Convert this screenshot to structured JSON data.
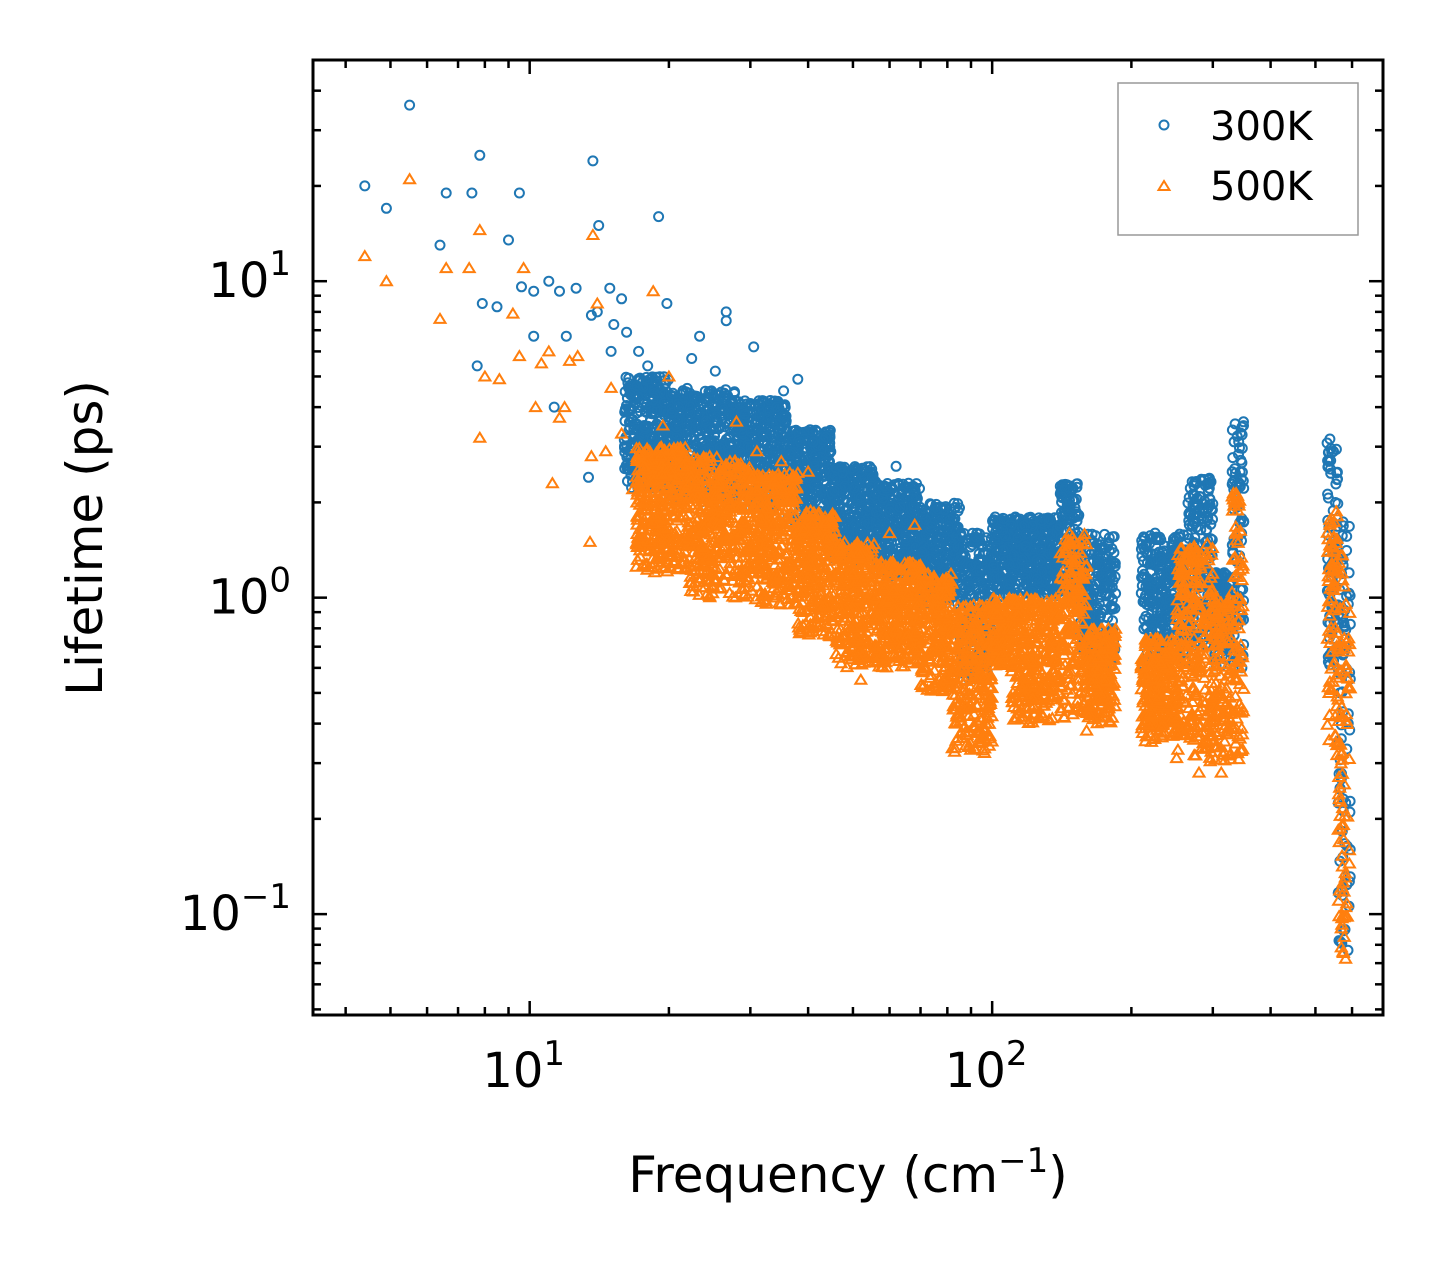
{
  "chart_data": {
    "type": "scatter",
    "title": "",
    "xlabel": "Frequency (cm",
    "xlabel_sup": "−1",
    "xlabel_end": ")",
    "ylabel": "Lifetime (ps)",
    "xscale": "log",
    "yscale": "log",
    "xlim": [
      3.4,
      700
    ],
    "ylim": [
      0.048,
      50
    ],
    "x_ticks": [
      {
        "value": 10,
        "base": "10",
        "exp": "1"
      },
      {
        "value": 100,
        "base": "10",
        "exp": "2"
      }
    ],
    "y_ticks": [
      {
        "value": 0.1,
        "base": "10",
        "exp": "−1"
      },
      {
        "value": 1,
        "base": "10",
        "exp": "0"
      },
      {
        "value": 10,
        "base": "10",
        "exp": "1"
      }
    ],
    "legend_position": "top-right",
    "series": [
      {
        "name": "300K",
        "color": "#1f77b4",
        "marker": "circle",
        "points": [
          [
            4.4,
            20.0
          ],
          [
            4.9,
            17.0
          ],
          [
            5.5,
            36.0
          ],
          [
            6.4,
            13.0
          ],
          [
            6.6,
            19.0
          ],
          [
            7.5,
            19.0
          ],
          [
            7.8,
            25.0
          ],
          [
            7.7,
            5.4
          ],
          [
            7.9,
            8.5
          ],
          [
            8.5,
            8.3
          ],
          [
            9.0,
            13.5
          ],
          [
            9.5,
            19.0
          ],
          [
            9.6,
            9.6
          ],
          [
            10.2,
            9.3
          ],
          [
            10.2,
            6.7
          ],
          [
            11.0,
            10.0
          ],
          [
            11.3,
            4.0
          ],
          [
            11.6,
            9.3
          ],
          [
            12.0,
            6.7
          ],
          [
            12.6,
            9.5
          ],
          [
            13.4,
            2.4
          ],
          [
            13.6,
            7.8
          ],
          [
            13.7,
            24.0
          ],
          [
            14.1,
            15.0
          ],
          [
            14.0,
            8.0
          ],
          [
            14.9,
            9.5
          ],
          [
            15.0,
            6.0
          ],
          [
            15.2,
            7.3
          ],
          [
            15.8,
            8.8
          ],
          [
            16.2,
            6.9
          ],
          [
            17.2,
            6.0
          ],
          [
            18.0,
            5.4
          ],
          [
            18.5,
            4.2
          ],
          [
            19.0,
            16.0
          ],
          [
            19.8,
            8.5
          ],
          [
            21.0,
            4.0
          ],
          [
            22.4,
            5.7
          ],
          [
            23.3,
            6.7
          ],
          [
            25.2,
            5.2
          ],
          [
            26.6,
            8.0
          ],
          [
            26.6,
            7.5
          ],
          [
            29.2,
            3.8
          ],
          [
            30.5,
            6.2
          ],
          [
            33.0,
            3.9
          ],
          [
            35.4,
            4.5
          ],
          [
            38.0,
            4.9
          ],
          [
            41.0,
            3.1
          ],
          [
            44.5,
            2.9
          ],
          [
            55.0,
            2.4
          ],
          [
            62.0,
            2.6
          ]
        ],
        "bands": [
          [
            16,
            20,
            2.2,
            5.0
          ],
          [
            20,
            28,
            2.0,
            4.6
          ],
          [
            28,
            36,
            1.9,
            4.2
          ],
          [
            36,
            45,
            1.6,
            3.4
          ],
          [
            45,
            56,
            1.3,
            2.6
          ],
          [
            56,
            70,
            1.15,
            2.3
          ],
          [
            70,
            85,
            0.95,
            2.0
          ],
          [
            85,
            100,
            0.55,
            1.6
          ],
          [
            100,
            140,
            1.0,
            1.8
          ],
          [
            140,
            155,
            1.0,
            2.3
          ],
          [
            155,
            185,
            0.6,
            1.6
          ],
          [
            210,
            265,
            0.6,
            1.6
          ],
          [
            265,
            300,
            0.7,
            2.4
          ],
          [
            300,
            330,
            0.6,
            1.2
          ],
          [
            330,
            350,
            0.6,
            3.6
          ],
          [
            530,
            560,
            0.6,
            3.2
          ],
          [
            560,
            595,
            0.07,
            1.8
          ]
        ]
      },
      {
        "name": "500K",
        "color": "#ff7f0e",
        "marker": "triangle",
        "points": [
          [
            4.4,
            12.0
          ],
          [
            4.9,
            10.0
          ],
          [
            5.5,
            21.0
          ],
          [
            6.4,
            7.6
          ],
          [
            6.6,
            11.0
          ],
          [
            7.4,
            11.0
          ],
          [
            7.8,
            3.2
          ],
          [
            7.8,
            14.5
          ],
          [
            8.0,
            5.0
          ],
          [
            8.6,
            4.9
          ],
          [
            9.2,
            7.9
          ],
          [
            9.5,
            5.8
          ],
          [
            9.7,
            11.0
          ],
          [
            10.3,
            4.0
          ],
          [
            10.6,
            5.5
          ],
          [
            11.0,
            6.0
          ],
          [
            11.2,
            2.3
          ],
          [
            11.6,
            3.7
          ],
          [
            11.9,
            4.0
          ],
          [
            12.2,
            5.6
          ],
          [
            12.7,
            5.8
          ],
          [
            13.5,
            1.5
          ],
          [
            13.6,
            2.8
          ],
          [
            13.7,
            14.0
          ],
          [
            14.0,
            8.5
          ],
          [
            14.6,
            2.9
          ],
          [
            15.0,
            4.6
          ],
          [
            15.8,
            3.3
          ],
          [
            16.7,
            2.2
          ],
          [
            17.1,
            1.8
          ],
          [
            18.2,
            1.5
          ],
          [
            18.5,
            9.3
          ],
          [
            19.4,
            3.5
          ],
          [
            20.0,
            5.0
          ],
          [
            20.4,
            1.3
          ],
          [
            21.5,
            2.6
          ],
          [
            24.5,
            2.8
          ],
          [
            28.0,
            3.6
          ],
          [
            31.0,
            2.9
          ],
          [
            35.0,
            2.7
          ],
          [
            40.0,
            2.5
          ],
          [
            47.0,
            1.4
          ],
          [
            52.0,
            0.55
          ],
          [
            60.0,
            1.6
          ],
          [
            68.0,
            1.7
          ],
          [
            95.0,
            0.35
          ],
          [
            160.0,
            0.38
          ],
          [
            280.0,
            0.28
          ],
          [
            313.0,
            0.28
          ],
          [
            345.0,
            0.33
          ]
        ],
        "bands": [
          [
            17,
            22,
            1.2,
            3.0
          ],
          [
            22,
            30,
            1.0,
            2.8
          ],
          [
            30,
            38,
            0.95,
            2.5
          ],
          [
            38,
            46,
            0.75,
            1.9
          ],
          [
            46,
            56,
            0.6,
            1.5
          ],
          [
            56,
            70,
            0.6,
            1.3
          ],
          [
            70,
            82,
            0.5,
            1.2
          ],
          [
            82,
            100,
            0.32,
            0.95
          ],
          [
            100,
            110,
            0.6,
            1.0
          ],
          [
            110,
            140,
            0.4,
            1.0
          ],
          [
            140,
            160,
            0.4,
            1.6
          ],
          [
            160,
            185,
            0.4,
            0.8
          ],
          [
            210,
            250,
            0.35,
            0.75
          ],
          [
            250,
            300,
            0.3,
            1.5
          ],
          [
            300,
            330,
            0.3,
            1.0
          ],
          [
            330,
            350,
            0.3,
            2.2
          ],
          [
            530,
            560,
            0.3,
            1.9
          ],
          [
            560,
            595,
            0.065,
            1.4
          ]
        ]
      }
    ]
  }
}
